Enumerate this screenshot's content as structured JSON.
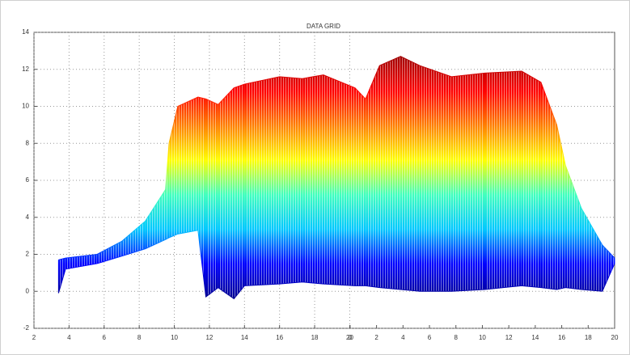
{
  "chart_data": {
    "type": "mesh",
    "title": "DATA GRID",
    "xlim": [
      2,
      35.1
    ],
    "xticks": [
      2,
      4,
      6,
      8,
      10,
      12,
      14,
      16,
      18,
      20
    ],
    "x2lim": [
      -23.9,
      20
    ],
    "x2ticks": [
      0,
      2,
      4,
      6,
      8,
      10,
      12,
      14,
      16,
      18,
      20
    ],
    "ylim": [
      -2,
      14
    ],
    "yticks": [
      -2,
      0,
      2,
      4,
      6,
      8,
      10,
      12,
      14
    ],
    "grid": true,
    "colormap": [
      "#00008f",
      "#0000ff",
      "#00c8ff",
      "#40ffbf",
      "#ffff00",
      "#ff8000",
      "#ff0000",
      "#a00000"
    ],
    "x": [
      3.4,
      3.8,
      5.6,
      7.0,
      8.35,
      9.5,
      9.7,
      10.2,
      11.35,
      11.8,
      12.5,
      13.4,
      14,
      16,
      17.3,
      18.5,
      20.3,
      20.9,
      21.7,
      22.9,
      24,
      25.8,
      27.7,
      29.8,
      30.9,
      31.8,
      32.3,
      33.2,
      34.4,
      35.1
    ],
    "series": [
      {
        "values": [
          1.7,
          1.8,
          2.0,
          2.7,
          3.8,
          5.5,
          8.0,
          10.0,
          10.5,
          10.4,
          10.1,
          11.0,
          11.2,
          11.6,
          11.5,
          11.7,
          11.0,
          10.4,
          12.2,
          12.7,
          12.2,
          11.6,
          11.8,
          11.9,
          11.3,
          9.0,
          6.8,
          4.5,
          2.5,
          1.8
        ]
      },
      {
        "values": [
          -0.1,
          1.2,
          1.5,
          1.9,
          2.3,
          2.8,
          2.9,
          3.1,
          3.3,
          -0.3,
          0.2,
          -0.4,
          0.3,
          0.4,
          0.5,
          0.4,
          0.3,
          0.3,
          0.2,
          0.1,
          0.0,
          0.0,
          0.1,
          0.3,
          0.2,
          0.1,
          0.2,
          0.1,
          0.0,
          1.5
        ]
      }
    ]
  }
}
